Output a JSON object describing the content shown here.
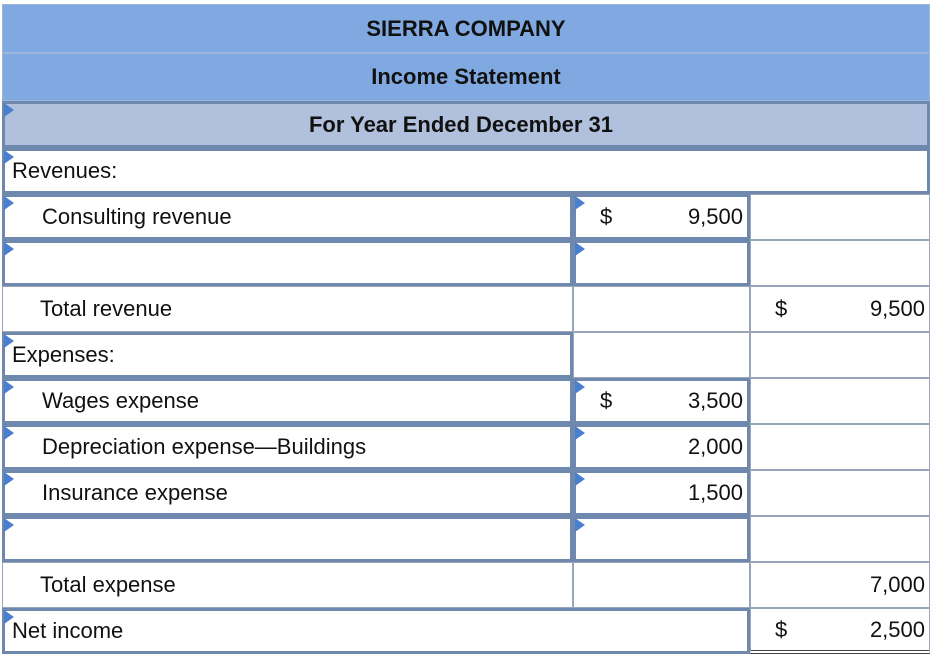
{
  "header": {
    "company": "SIERRA COMPANY",
    "statement": "Income Statement",
    "period": "For Year Ended December 31"
  },
  "revenues": {
    "label": "Revenues:",
    "items": [
      {
        "label": "Consulting revenue",
        "currency": "$",
        "amount": "9,500"
      },
      {
        "label": "",
        "currency": "",
        "amount": ""
      }
    ],
    "total_label": "Total revenue",
    "total_currency": "$",
    "total_amount": "9,500"
  },
  "expenses": {
    "label": "Expenses:",
    "items": [
      {
        "label": "Wages expense",
        "currency": "$",
        "amount": "3,500"
      },
      {
        "label": "Depreciation expense—Buildings",
        "currency": "",
        "amount": "2,000"
      },
      {
        "label": "Insurance expense",
        "currency": "",
        "amount": "1,500"
      },
      {
        "label": "",
        "currency": "",
        "amount": ""
      }
    ],
    "total_label": "Total expense",
    "total_amount": "7,000"
  },
  "net_income": {
    "label": "Net income",
    "currency": "$",
    "amount": "2,500"
  },
  "colors": {
    "header_blue": "#7fa9e0",
    "header_gray": "#b1c0dc",
    "input_border": "#6f88ad",
    "marker": "#4a7fd0"
  }
}
